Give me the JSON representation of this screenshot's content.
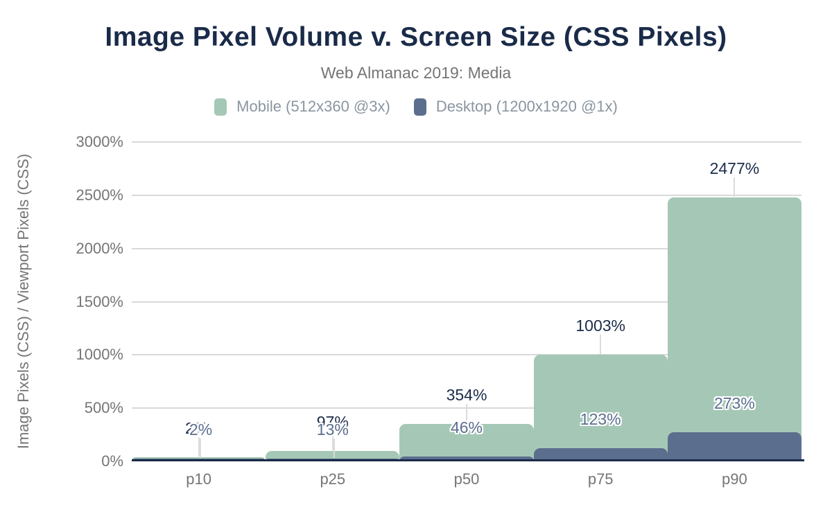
{
  "chart_data": {
    "type": "bar",
    "title": "Image Pixel Volume v. Screen Size (CSS Pixels)",
    "subtitle": "Web Almanac 2019: Media",
    "categories": [
      "p10",
      "p25",
      "p50",
      "p75",
      "p90"
    ],
    "series": [
      {
        "name": "Mobile (512x360 @3x)",
        "color": "#a5c8b6",
        "label_color": "#1a2b49",
        "values": [
          2,
          97,
          354,
          1003,
          2477
        ],
        "labels": [
          "2%",
          "97%",
          "354%",
          "1003%",
          "2477%"
        ]
      },
      {
        "name": "Desktop (1200x1920 @1x)",
        "color": "#5b6e8e",
        "label_color": "#5b6e8e",
        "values": [
          2,
          13,
          46,
          123,
          273
        ],
        "labels": [
          "2%",
          "13%",
          "46%",
          "123%",
          "273%"
        ]
      }
    ],
    "xlabel": "",
    "ylabel": "Image Pixels (CSS) / Viewport Pixels (CSS)",
    "ylim": [
      0,
      3000
    ],
    "ytick_labels": [
      "0%",
      "500%",
      "1000%",
      "1500%",
      "2000%",
      "2500%",
      "3000%"
    ],
    "grid": true,
    "legend_position": "top",
    "colors": {
      "title": "#1a2b49",
      "subtitle": "#757575",
      "axis_text": "#757575",
      "legend_text": "#8a95a1",
      "gridline": "#d9d9d9",
      "axis_line": "#1a2b49"
    }
  }
}
